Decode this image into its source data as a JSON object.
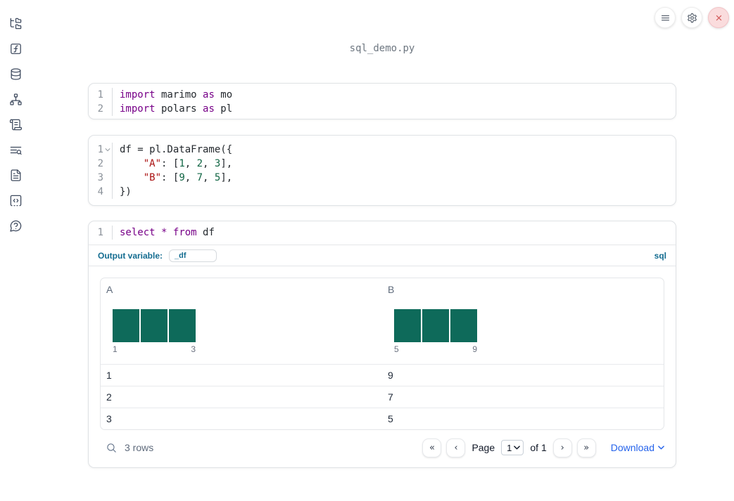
{
  "topbar": {
    "filename": "sql_demo.py",
    "buttons": [
      {
        "icon": "hamburger-menu-icon"
      },
      {
        "icon": "gear-icon"
      },
      {
        "icon": "close-icon"
      }
    ]
  },
  "sidebar": {
    "icons": [
      "file-tree-icon",
      "function-icon",
      "database-icon",
      "network-graph-icon",
      "scroll-icon",
      "list-search-icon",
      "document-icon",
      "code-snippet-icon",
      "help-icon"
    ]
  },
  "colors": {
    "histogram_bar": "#0e6a5a",
    "accent_blue": "#136c90",
    "link_blue": "#2563eb",
    "keyword": "#770088",
    "string": "#aa1111",
    "number": "#116644"
  },
  "cells": [
    {
      "type": "python",
      "lines": [
        {
          "num": "1",
          "tokens": [
            [
              "kw",
              "import"
            ],
            [
              "pl",
              " marimo "
            ],
            [
              "kw",
              "as"
            ],
            [
              "pl",
              " mo"
            ]
          ]
        },
        {
          "num": "2",
          "tokens": [
            [
              "kw",
              "import"
            ],
            [
              "pl",
              " polars "
            ],
            [
              "kw",
              "as"
            ],
            [
              "pl",
              " pl"
            ]
          ]
        }
      ]
    },
    {
      "type": "python",
      "lines": [
        {
          "num": "1",
          "fold": true,
          "tokens": [
            [
              "pl",
              "df = pl.DataFrame({"
            ]
          ]
        },
        {
          "num": "2",
          "tokens": [
            [
              "pl",
              "    "
            ],
            [
              "str",
              "\"A\""
            ],
            [
              "pl",
              ": ["
            ],
            [
              "num",
              "1"
            ],
            [
              "pl",
              ", "
            ],
            [
              "num",
              "2"
            ],
            [
              "pl",
              ", "
            ],
            [
              "num",
              "3"
            ],
            [
              "pl",
              "],"
            ]
          ]
        },
        {
          "num": "3",
          "tokens": [
            [
              "pl",
              "    "
            ],
            [
              "str",
              "\"B\""
            ],
            [
              "pl",
              ": ["
            ],
            [
              "num",
              "9"
            ],
            [
              "pl",
              ", "
            ],
            [
              "num",
              "7"
            ],
            [
              "pl",
              ", "
            ],
            [
              "num",
              "5"
            ],
            [
              "pl",
              "],"
            ]
          ]
        },
        {
          "num": "4",
          "tokens": [
            [
              "pl",
              "})"
            ]
          ]
        }
      ]
    },
    {
      "type": "sql",
      "lines": [
        {
          "num": "1",
          "tokens": [
            [
              "kw",
              "select"
            ],
            [
              "pl",
              " "
            ],
            [
              "kw",
              "*"
            ],
            [
              "pl",
              " "
            ],
            [
              "kw",
              "from"
            ],
            [
              "pl",
              " df"
            ]
          ]
        }
      ],
      "output_variable_label": "Output variable:",
      "output_variable_value": "_df",
      "language_badge": "sql"
    }
  ],
  "table": {
    "columns": [
      {
        "name": "A",
        "bars": [
          1,
          1,
          1
        ],
        "range_min": "1",
        "range_max": "3"
      },
      {
        "name": "B",
        "bars": [
          1,
          1,
          1
        ],
        "range_min": "5",
        "range_max": "9"
      }
    ],
    "rows": [
      [
        "1",
        "9"
      ],
      [
        "2",
        "7"
      ],
      [
        "3",
        "5"
      ]
    ],
    "footer": {
      "row_count": "3 rows",
      "pagination": {
        "first_icon": "«",
        "prev_icon": "‹",
        "page_label": "Page",
        "page_value": "1",
        "of_text": "of 1",
        "next_icon": "›",
        "last_icon": "»"
      },
      "download_label": "Download"
    }
  }
}
